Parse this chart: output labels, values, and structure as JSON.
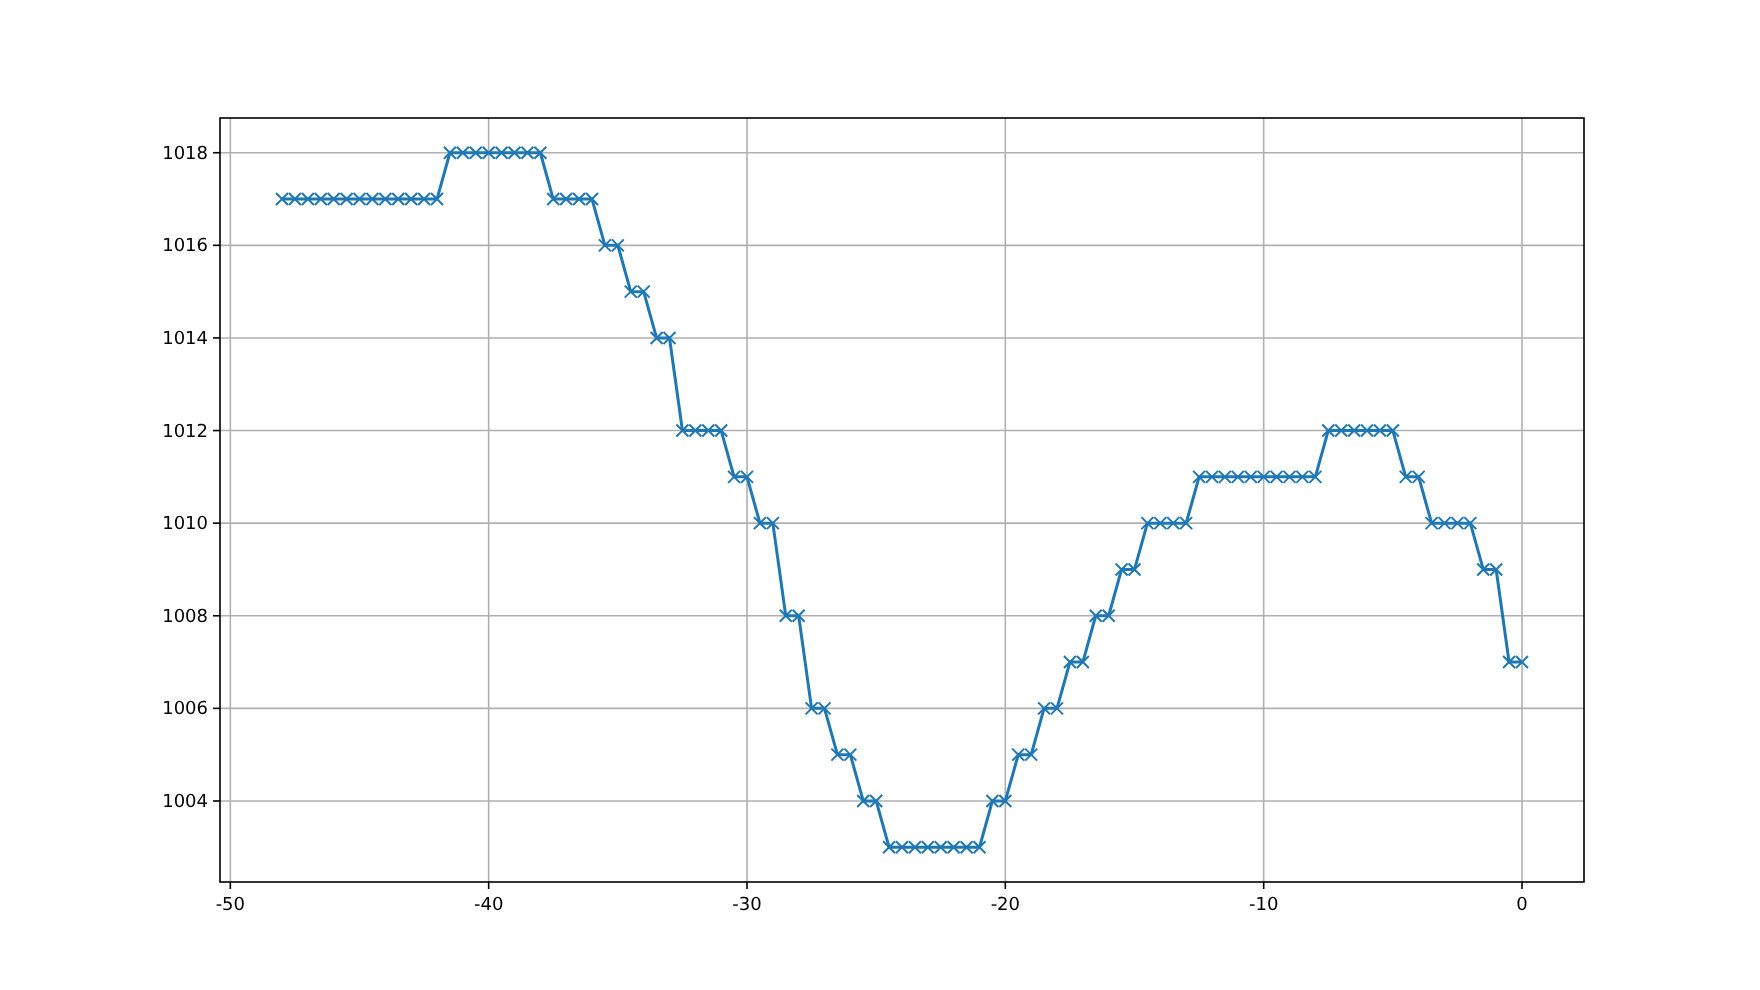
{
  "chart_data": {
    "type": "line",
    "marker": "cross",
    "grid": true,
    "x": [
      -48,
      -47.5,
      -47,
      -46.5,
      -46,
      -45.5,
      -45,
      -44.5,
      -44,
      -43.5,
      -43,
      -42.5,
      -42,
      -41.5,
      -41,
      -40.5,
      -40,
      -39.5,
      -39,
      -38.5,
      -38,
      -37.5,
      -37,
      -36.5,
      -36,
      -35.5,
      -35,
      -34.5,
      -34,
      -33.5,
      -33,
      -32.5,
      -32,
      -31.5,
      -31,
      -30.5,
      -30,
      -29.5,
      -29,
      -28.5,
      -28,
      -27.5,
      -27,
      -26.5,
      -26,
      -25.5,
      -25,
      -24.5,
      -24,
      -23.5,
      -23,
      -22.5,
      -22,
      -21.5,
      -21,
      -20.5,
      -20,
      -19.5,
      -19,
      -18.5,
      -18,
      -17.5,
      -17,
      -16.5,
      -16,
      -15.5,
      -15,
      -14.5,
      -14,
      -13.5,
      -13,
      -12.5,
      -12,
      -11.5,
      -11,
      -10.5,
      -10,
      -9.5,
      -9,
      -8.5,
      -8,
      -7.5,
      -7,
      -6.5,
      -6,
      -5.5,
      -5,
      -4.5,
      -4,
      -3.5,
      -3,
      -2.5,
      -2,
      -1.5,
      -1,
      -0.5,
      0
    ],
    "series": [
      {
        "color": "#1f77b4",
        "values": [
          1017,
          1017,
          1017,
          1017,
          1017,
          1017,
          1017,
          1017,
          1017,
          1017,
          1017,
          1017,
          1017,
          1018,
          1018,
          1018,
          1018,
          1018,
          1018,
          1018,
          1018,
          1017,
          1017,
          1017,
          1017,
          1016,
          1016,
          1015,
          1015,
          1014,
          1014,
          1012,
          1012,
          1012,
          1012,
          1011,
          1011,
          1010,
          1010,
          1008,
          1008,
          1006,
          1006,
          1005,
          1005,
          1004,
          1004,
          1003,
          1003,
          1003,
          1003,
          1003,
          1003,
          1003,
          1003,
          1004,
          1004,
          1005,
          1005,
          1006,
          1006,
          1007,
          1007,
          1008,
          1008,
          1009,
          1009,
          1010,
          1010,
          1010,
          1010,
          1011,
          1011,
          1011,
          1011,
          1011,
          1011,
          1011,
          1011,
          1011,
          1011,
          1012,
          1012,
          1012,
          1012,
          1012,
          1012,
          1011,
          1011,
          1010,
          1010,
          1010,
          1010,
          1009,
          1009,
          1007,
          1007
        ]
      }
    ],
    "xlim": [
      -50.4,
      2.4
    ],
    "xticks": [
      -50,
      -40,
      -30,
      -20,
      -10,
      0
    ],
    "ylim": [
      1002.25,
      1018.75
    ],
    "yticks": [
      1004,
      1006,
      1008,
      1010,
      1012,
      1014,
      1016,
      1018
    ]
  }
}
